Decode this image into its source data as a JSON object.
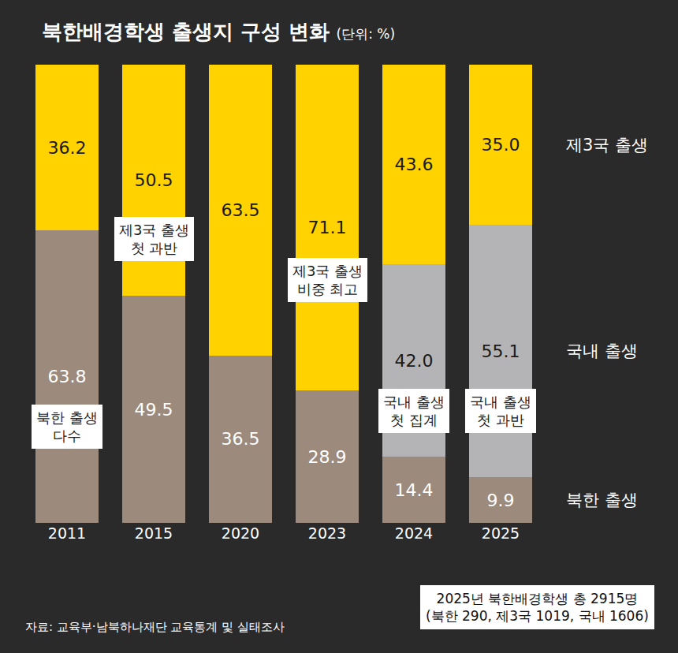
{
  "chart_data": {
    "type": "bar",
    "title": "북한배경학생 출생지 구성 변화",
    "subtitle": "(단위: %)",
    "categories": [
      "2011",
      "2015",
      "2020",
      "2023",
      "2024",
      "2025"
    ],
    "stacked": true,
    "data_labels": true,
    "grid": false,
    "tick_labels": "x",
    "ylim": [
      0,
      100
    ],
    "series": [
      {
        "name": "북한 출생",
        "color": "#9c8a7c",
        "values": [
          63.8,
          49.5,
          36.5,
          28.9,
          14.4,
          9.9
        ],
        "value_labels": [
          "63.8",
          "49.5",
          "36.5",
          "28.9",
          "14.4",
          "9.9"
        ]
      },
      {
        "name": "국내 출생",
        "color": "#b4b4b6",
        "values": [
          null,
          null,
          null,
          null,
          42.0,
          55.1
        ],
        "value_labels": [
          null,
          null,
          null,
          null,
          "42.0",
          "55.1"
        ]
      },
      {
        "name": "제3국 출생",
        "color": "#ffd200",
        "values": [
          36.2,
          50.5,
          63.5,
          71.1,
          43.6,
          35.0
        ],
        "value_labels": [
          "36.2",
          "50.5",
          "63.5",
          "71.1",
          "43.6",
          "35.0"
        ]
      }
    ],
    "annotations": [
      {
        "category": "2011",
        "lines": [
          "북한 출생",
          "다수"
        ]
      },
      {
        "category": "2015",
        "lines": [
          "제3국 출생",
          "첫 과반"
        ]
      },
      {
        "category": "2023",
        "lines": [
          "제3국 출생",
          "비중 최고"
        ]
      },
      {
        "category": "2024",
        "lines": [
          "국내 출생",
          "첫 집계"
        ]
      },
      {
        "category": "2025",
        "lines": [
          "국내 출생",
          "첫 과반"
        ]
      }
    ],
    "note": [
      "2025년 북한배경학생 총 2915명",
      "(북한 290, 제3국 1019, 국내 1606)"
    ],
    "source": "자료: 교육부·남북하나재단 교육통계 및 실태조사"
  }
}
